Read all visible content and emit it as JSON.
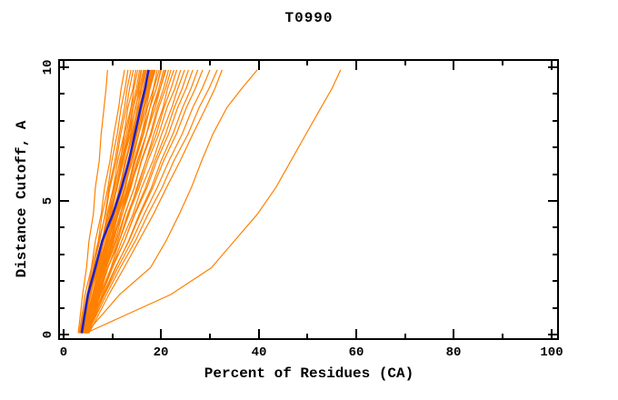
{
  "title": "T0990",
  "axes": {
    "x": {
      "label": "Percent of Residues (CA)",
      "min": 0,
      "max": 100,
      "major_ticks": [
        0,
        20,
        40,
        60,
        80,
        100
      ],
      "minor_ticks": [
        10,
        30,
        50,
        70,
        90
      ]
    },
    "y": {
      "label": "Distance Cutoff, A",
      "min": 0,
      "max": 10,
      "major_ticks": [
        0,
        5,
        10
      ],
      "minor_ticks": [
        1,
        2,
        3,
        4,
        6,
        7,
        8,
        9
      ]
    }
  },
  "colors": {
    "model_lines": "#ff8000",
    "highlight_line": "#2020c8",
    "frame": "#000000",
    "background": "#ffffff",
    "text": "#000000"
  },
  "chart_data": {
    "type": "line",
    "title": "T0990",
    "xlabel": "Percent of Residues (CA)",
    "ylabel": "Distance Cutoff, A",
    "xlim": [
      0,
      100
    ],
    "ylim": [
      0,
      10
    ],
    "grid": false,
    "legend": "none",
    "y_levels": [
      0.05,
      1.5,
      2.5,
      3.5,
      4.5,
      5.5,
      6.5,
      7.5,
      8.5,
      9.2,
      9.9
    ],
    "series": [
      {
        "role": "model",
        "x": [
          3.0,
          3.9,
          4.7,
          5.2,
          6.1,
          6.5,
          7.3,
          7.7,
          8.3,
          8.7,
          9.0
        ]
      },
      {
        "role": "model",
        "x": [
          3.2,
          4.4,
          5.7,
          6.5,
          7.7,
          8.4,
          9.5,
          10.3,
          11.3,
          11.8,
          12.5
        ]
      },
      {
        "role": "model",
        "x": [
          3.4,
          4.9,
          5.8,
          7.1,
          7.9,
          9.1,
          9.9,
          11.0,
          11.8,
          12.6,
          13.2
        ]
      },
      {
        "role": "model",
        "x": [
          3.6,
          5.2,
          6.1,
          7.4,
          8.5,
          9.3,
          10.5,
          11.4,
          12.5,
          13.0,
          13.8
        ]
      },
      {
        "role": "model",
        "x": [
          3.3,
          4.8,
          6.2,
          7.2,
          8.6,
          9.5,
          10.8,
          11.7,
          12.9,
          13.5,
          14.3
        ]
      },
      {
        "role": "model",
        "x": [
          3.8,
          5.5,
          6.5,
          7.9,
          8.9,
          10.2,
          11.1,
          12.4,
          13.2,
          14.2,
          14.8
        ]
      },
      {
        "role": "model",
        "x": [
          4.0,
          5.5,
          7.0,
          8.0,
          9.4,
          10.3,
          11.6,
          12.5,
          13.8,
          14.4,
          15.2
        ]
      },
      {
        "role": "model",
        "x": [
          3.5,
          5.3,
          6.5,
          8.0,
          9.1,
          10.5,
          11.5,
          12.9,
          13.9,
          14.9,
          15.6
        ]
      },
      {
        "role": "model",
        "x": [
          4.2,
          6.0,
          7.1,
          8.6,
          9.6,
          11.0,
          12.0,
          13.4,
          14.3,
          15.3,
          16.0
        ]
      },
      {
        "role": "model",
        "x": [
          3.7,
          5.4,
          7.1,
          8.2,
          9.8,
          10.9,
          12.3,
          13.4,
          14.8,
          15.5,
          16.4
        ]
      },
      {
        "role": "model",
        "x": [
          4.4,
          6.1,
          7.7,
          8.8,
          10.3,
          11.4,
          12.8,
          13.9,
          15.2,
          15.9,
          16.8
        ]
      },
      {
        "role": "model",
        "x": [
          3.9,
          5.9,
          7.2,
          8.8,
          10.0,
          11.5,
          12.6,
          14.1,
          15.1,
          16.2,
          17.0
        ]
      },
      {
        "role": "model",
        "x": [
          4.6,
          6.4,
          8.0,
          9.2,
          10.8,
          11.9,
          13.4,
          14.5,
          16.0,
          16.6,
          17.6
        ]
      },
      {
        "role": "model",
        "x": [
          4.1,
          6.2,
          7.6,
          9.3,
          10.5,
          12.1,
          13.3,
          14.9,
          16.0,
          17.2,
          18.0
        ]
      },
      {
        "role": "model",
        "x": [
          4.8,
          6.9,
          8.2,
          9.9,
          11.1,
          12.7,
          13.8,
          15.4,
          16.5,
          17.6,
          18.4
        ]
      },
      {
        "role": "model",
        "x": [
          4.3,
          6.3,
          8.1,
          9.5,
          11.2,
          12.5,
          14.1,
          15.4,
          17.0,
          17.7,
          18.8
        ]
      },
      {
        "role": "model",
        "x": [
          5.0,
          7.1,
          8.6,
          10.3,
          11.6,
          13.2,
          14.4,
          16.0,
          17.2,
          18.4,
          19.2
        ]
      },
      {
        "role": "model",
        "x": [
          4.5,
          6.6,
          8.5,
          9.9,
          11.7,
          13.0,
          14.7,
          16.0,
          17.7,
          18.5,
          19.6
        ]
      },
      {
        "role": "model",
        "x": [
          3.6,
          6.1,
          7.7,
          9.7,
          11.2,
          13.1,
          14.5,
          16.3,
          17.7,
          19.0,
          20.0
        ]
      },
      {
        "role": "model",
        "x": [
          4.7,
          7.1,
          8.7,
          10.6,
          12.0,
          13.8,
          15.2,
          17.0,
          18.3,
          19.5,
          20.5
        ]
      },
      {
        "role": "model",
        "x": [
          3.9,
          6.3,
          8.4,
          10.0,
          12.0,
          13.6,
          15.5,
          17.0,
          18.8,
          19.8,
          21.0
        ]
      },
      {
        "role": "model",
        "x": [
          4.9,
          7.4,
          9.1,
          11.1,
          12.6,
          14.5,
          15.9,
          17.8,
          19.2,
          20.5,
          21.5
        ]
      },
      {
        "role": "model",
        "x": [
          4.2,
          6.9,
          8.7,
          10.8,
          12.5,
          14.5,
          16.0,
          18.0,
          19.5,
          20.9,
          22.0
        ]
      },
      {
        "role": "model",
        "x": [
          5.1,
          7.5,
          9.7,
          11.4,
          13.4,
          15.0,
          16.9,
          18.5,
          20.4,
          21.3,
          22.6
        ]
      },
      {
        "role": "model",
        "x": [
          4.4,
          7.2,
          9.1,
          11.4,
          13.1,
          15.2,
          16.9,
          19.0,
          20.6,
          22.0,
          23.2
        ]
      },
      {
        "role": "model",
        "x": [
          4.0,
          7.0,
          9.0,
          11.4,
          13.3,
          15.5,
          17.3,
          19.5,
          21.2,
          22.8,
          24.0
        ]
      },
      {
        "role": "model",
        "x": [
          4.6,
          7.4,
          9.9,
          11.9,
          14.2,
          16.0,
          18.3,
          20.1,
          22.2,
          23.4,
          24.8
        ]
      },
      {
        "role": "model",
        "x": [
          4.8,
          7.9,
          10.0,
          12.5,
          14.5,
          16.8,
          18.7,
          20.9,
          22.7,
          24.3,
          25.6
        ]
      },
      {
        "role": "model",
        "x": [
          4.3,
          7.6,
          9.9,
          12.5,
          14.6,
          17.1,
          19.1,
          21.5,
          23.4,
          25.1,
          26.5
        ]
      },
      {
        "role": "model",
        "x": [
          5.0,
          8.3,
          10.7,
          13.3,
          15.5,
          18.0,
          20.0,
          22.4,
          24.4,
          26.1,
          27.5
        ]
      },
      {
        "role": "model",
        "x": [
          4.5,
          8.1,
          10.6,
          13.4,
          15.7,
          18.3,
          20.5,
          23.1,
          25.2,
          27.0,
          28.5
        ]
      },
      {
        "role": "model",
        "x": [
          4.7,
          8.4,
          11.1,
          14.0,
          16.5,
          19.2,
          21.6,
          24.3,
          26.5,
          28.4,
          30.0
        ]
      },
      {
        "role": "model",
        "x": [
          4.9,
          8.8,
          11.6,
          14.7,
          17.3,
          20.2,
          22.6,
          25.5,
          27.8,
          29.8,
          31.5
        ]
      },
      {
        "role": "model",
        "x": [
          5.2,
          9.3,
          12.4,
          15.4,
          18.4,
          21.1,
          23.9,
          26.5,
          29.2,
          31.0,
          32.5
        ]
      },
      {
        "role": "model",
        "x": [
          3.8,
          5.6,
          6.8,
          8.3,
          9.4,
          10.8,
          11.8,
          13.2,
          14.2,
          15.2,
          15.9
        ]
      },
      {
        "role": "model",
        "x": [
          4.0,
          6.0,
          7.3,
          9.0,
          10.1,
          11.7,
          12.8,
          14.3,
          15.4,
          16.5,
          17.3
        ]
      },
      {
        "role": "model",
        "x": [
          4.2,
          6.4,
          7.8,
          9.6,
          10.9,
          12.5,
          13.8,
          15.4,
          16.6,
          17.7,
          18.6
        ]
      },
      {
        "role": "model",
        "x": [
          4.4,
          6.7,
          8.3,
          10.2,
          11.6,
          13.4,
          14.7,
          16.4,
          17.7,
          19.0,
          19.9
        ]
      },
      {
        "role": "model",
        "x": [
          3.4,
          5.4,
          6.7,
          8.3,
          9.5,
          11.0,
          12.2,
          13.7,
          14.7,
          15.8,
          16.6
        ]
      },
      {
        "role": "model",
        "x": [
          4.1,
          6.2,
          7.5,
          9.2,
          10.4,
          12.0,
          13.2,
          14.7,
          15.9,
          17.0,
          17.8
        ]
      },
      {
        "role": "model",
        "x": [
          4.5,
          6.6,
          7.9,
          9.6,
          10.8,
          12.4,
          13.6,
          15.1,
          16.3,
          17.4,
          18.2
        ]
      },
      {
        "role": "model",
        "x": [
          3.7,
          6.3,
          8.0,
          10.0,
          11.6,
          13.6,
          15.1,
          17.0,
          18.4,
          19.8,
          20.8
        ]
      },
      {
        "role": "model",
        "x": [
          4.6,
          11.5,
          17.8,
          21.0,
          23.7,
          26.2,
          28.3,
          30.6,
          33.5,
          36.5,
          39.7
        ]
      },
      {
        "role": "model",
        "x": [
          4.5,
          22.0,
          30.3,
          35.0,
          39.7,
          43.5,
          46.6,
          49.7,
          52.8,
          55.0,
          56.8
        ]
      },
      {
        "role": "highlight",
        "x": [
          3.7,
          5.0,
          6.5,
          7.9,
          10.1,
          11.9,
          13.4,
          14.6,
          15.8,
          16.7,
          17.4
        ]
      }
    ]
  }
}
